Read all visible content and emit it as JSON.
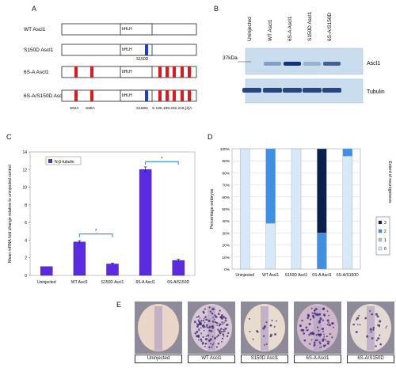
{
  "panels": {
    "a": {
      "label": "A",
      "domain_label": "bHLH",
      "constructs": [
        {
          "name": "WT Ascl1",
          "s150d": false,
          "mutations": false
        },
        {
          "name": "S150D Ascl1",
          "s150d": true,
          "mutations": false
        },
        {
          "name": "6S-A Ascl1",
          "s150d": false,
          "mutations": true
        },
        {
          "name": "6S-A/S150D Ascl1",
          "s150d": true,
          "mutations": true
        }
      ],
      "s150d_label": "S150D",
      "site_labels": [
        "S62A",
        "S88A",
        "S150D",
        "S 185,189,202,218,[2]A"
      ]
    },
    "b": {
      "label": "B",
      "lanes": [
        "Uninjected",
        "WT Ascl1",
        "6S-A Ascl1",
        "S150D Ascl1",
        "6S-A/S150D"
      ],
      "marker": "37kDa",
      "bands": [
        "Ascl1",
        "Tubulin"
      ],
      "ascl1_intensity": [
        0,
        0.35,
        0.95,
        0.25,
        0.7
      ]
    },
    "c": {
      "label": "C",
      "legend": "N-β-tubulin",
      "significance": "*"
    },
    "d": {
      "label": "D",
      "legend_title": "Extent of neurogenesis",
      "legend_levels": [
        "3",
        "2",
        "1",
        "0"
      ]
    },
    "e": {
      "label": "E",
      "embryos": [
        "Uninjected",
        "WT Ascl1",
        "S150D Ascl1",
        "6S-A Ascl1",
        "6S-A/S150D"
      ]
    }
  },
  "chart_data": [
    {
      "type": "bar",
      "title": "",
      "categories": [
        "Uninjected",
        "WT Ascl1",
        "S150D Ascl1",
        "6S-A Ascl1",
        "6S-A/S150D"
      ],
      "series": [
        {
          "name": "N-β-tubulin",
          "values": [
            1.0,
            3.8,
            1.3,
            12.0,
            1.7
          ],
          "errors": [
            0,
            0.15,
            0.1,
            0.3,
            0.15
          ]
        }
      ],
      "ylabel": "Mean mRNA fold change relative to uninjected control",
      "xlabel": "",
      "ylim": [
        0,
        14
      ],
      "yticks": [
        0,
        2,
        4,
        6,
        8,
        10,
        12,
        14
      ],
      "color": "#5a2be0",
      "significance": [
        [
          "WT Ascl1",
          "S150D Ascl1"
        ],
        [
          "6S-A Ascl1",
          "6S-A/S150D"
        ]
      ]
    },
    {
      "type": "bar",
      "stacked": true,
      "title": "",
      "categories": [
        "Uninjected",
        "WT Ascl1",
        "S150D Ascl1",
        "6S-A Ascl1",
        "6S-A/S150D"
      ],
      "series": [
        {
          "name": "0",
          "values": [
            100,
            38,
            100,
            0,
            94
          ],
          "color": "#d7e8f7"
        },
        {
          "name": "1",
          "values": [
            0,
            0,
            0,
            0,
            0
          ],
          "color": "#a7cdee"
        },
        {
          "name": "2",
          "values": [
            0,
            62,
            0,
            30,
            6
          ],
          "color": "#3f8fe3"
        },
        {
          "name": "3",
          "values": [
            0,
            0,
            0,
            70,
            0
          ],
          "color": "#0b1f4d"
        }
      ],
      "ylabel": "Percentage embryos",
      "yticks": [
        "0%",
        "10%",
        "20%",
        "30%",
        "40%",
        "50%",
        "60%",
        "70%",
        "80%",
        "90%",
        "100%"
      ],
      "ylim": [
        0,
        100
      ]
    }
  ]
}
